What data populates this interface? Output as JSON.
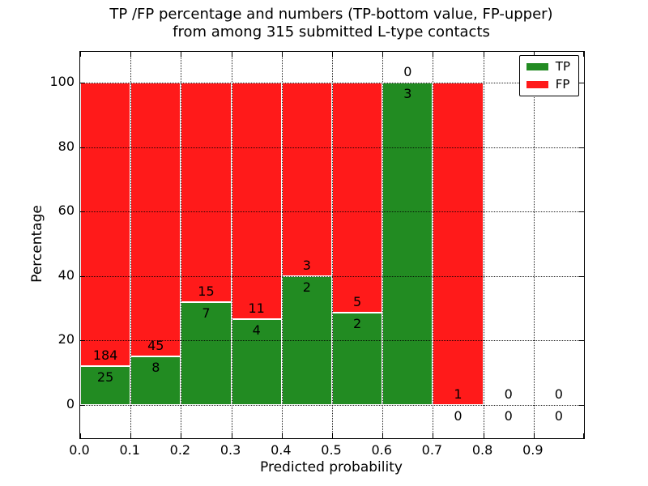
{
  "title": {
    "line1": "TP /FP percentage and numbers (TP-bottom value, FP-upper)",
    "line2": "from among 315 submitted L-type contacts"
  },
  "chart_data": {
    "type": "bar",
    "stacked": true,
    "normalized_to_percent": true,
    "xlabel": "Predicted probability",
    "ylabel": "Percentage",
    "total_contacts": 315,
    "bins": [
      "0.0-0.1",
      "0.1-0.2",
      "0.2-0.3",
      "0.3-0.4",
      "0.4-0.5",
      "0.5-0.6",
      "0.6-0.7",
      "0.7-0.8",
      "0.8-0.9",
      "0.9-1.0"
    ],
    "series": [
      {
        "name": "TP",
        "color": "#228b22",
        "values": [
          25,
          8,
          7,
          4,
          2,
          2,
          3,
          0,
          0,
          0
        ]
      },
      {
        "name": "FP",
        "color": "#ff1a1a",
        "values": [
          184,
          45,
          15,
          11,
          3,
          5,
          0,
          1,
          0,
          0
        ]
      }
    ],
    "tp_percent_by_bin": [
      11.96,
      15.09,
      31.82,
      26.67,
      40.0,
      28.57,
      100.0,
      0.0,
      null,
      null
    ],
    "x_tick_labels": [
      "0.0",
      "0.1",
      "0.2",
      "0.3",
      "0.4",
      "0.5",
      "0.6",
      "0.7",
      "0.8",
      "0.9"
    ],
    "y_tick_values": [
      0,
      20,
      40,
      60,
      80,
      100
    ],
    "xlim": [
      0.0,
      1.0
    ],
    "ylim": [
      -10,
      110
    ],
    "grid": true,
    "grid_style": "dotted",
    "legend": {
      "position": "upper-right",
      "entries": [
        {
          "label": "TP",
          "color": "#228b22"
        },
        {
          "label": "FP",
          "color": "#ff1a1a"
        }
      ]
    }
  },
  "colors": {
    "tp": "#228b22",
    "fp": "#ff1a1a",
    "grid": "#000000",
    "background": "#ffffff"
  }
}
